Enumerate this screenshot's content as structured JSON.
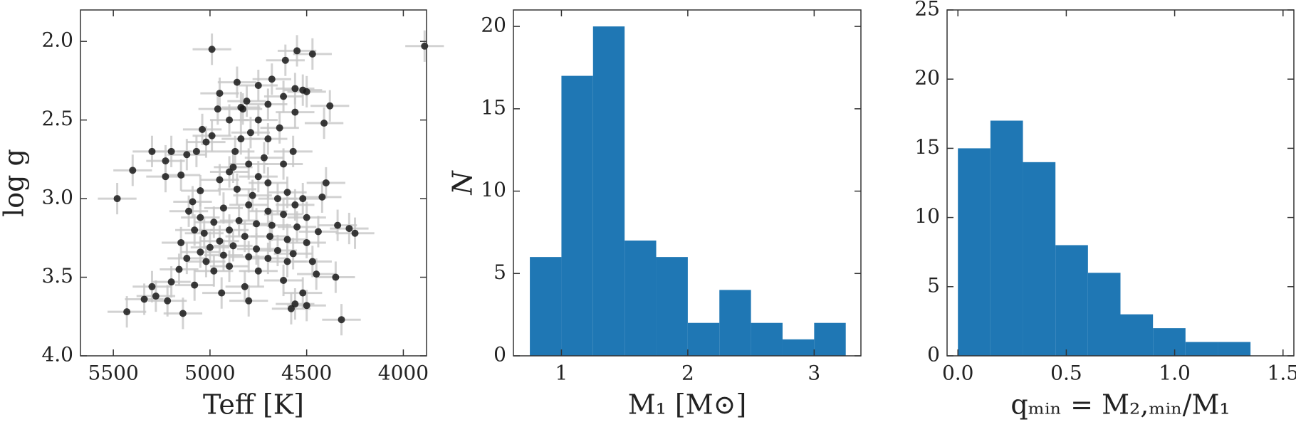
{
  "chart_data": [
    {
      "type": "scatter",
      "xlabel": "Teff [K]",
      "ylabel": "log g",
      "xlim": [
        5670,
        3880
      ],
      "ylim": [
        4.0,
        1.8
      ],
      "yinvert": true,
      "xticks": [
        5500,
        5000,
        4500,
        4000
      ],
      "yticks": [
        {
          "value": 2.0,
          "label": "2.0"
        },
        2.5,
        {
          "value": 3.0,
          "label": "3.0"
        },
        3.5,
        {
          "value": 4.0,
          "label": "4.0"
        }
      ],
      "color": "#1a1a1a",
      "error_color": "#c8c8c8",
      "xerr": 100,
      "yerr": 0.1,
      "x": [
        4990,
        4550,
        4470,
        4610,
        4680,
        4860,
        4750,
        4560,
        4520,
        4500,
        4950,
        4620,
        4810,
        4700,
        4840,
        4960,
        4560,
        4830,
        4380,
        4410,
        4750,
        4900,
        5040,
        4640,
        4790,
        4990,
        4840,
        5020,
        4700,
        4870,
        5200,
        5120,
        5070,
        5230,
        4570,
        4720,
        4800,
        4620,
        4880,
        4900,
        5400,
        5150,
        4750,
        5230,
        4950,
        4700,
        4400,
        5300,
        4860,
        5050,
        4600,
        4420,
        4780,
        4650,
        4520,
        5090,
        4800,
        4560,
        4930,
        4700,
        5110,
        4620,
        4500,
        5050,
        4850,
        4980,
        4760,
        4680,
        4550,
        4340,
        4280,
        4250,
        4900,
        4440,
        5080,
        5030,
        4820,
        4690,
        4600,
        4950,
        4500,
        5150,
        4880,
        5000,
        4760,
        4650,
        5050,
        4570,
        4930,
        4800,
        5120,
        4700,
        5020,
        4470,
        4600,
        4900,
        5160,
        4980,
        4750,
        4450,
        4350,
        4620,
        5080,
        5200,
        4820,
        5300,
        4940,
        5280,
        4520,
        5340,
        5220,
        4800,
        4560,
        4500,
        4580,
        5140,
        4320,
        3890,
        5480,
        5430
      ],
      "y": [
        2.05,
        2.06,
        2.08,
        2.12,
        2.24,
        2.26,
        2.28,
        2.3,
        2.31,
        2.32,
        2.33,
        2.35,
        2.38,
        2.4,
        2.42,
        2.43,
        2.45,
        2.43,
        2.41,
        2.52,
        2.5,
        2.5,
        2.56,
        2.55,
        2.58,
        2.6,
        2.62,
        2.64,
        2.62,
        2.7,
        2.7,
        2.72,
        2.7,
        2.76,
        2.7,
        2.74,
        2.78,
        2.78,
        2.8,
        2.83,
        2.82,
        2.85,
        2.86,
        2.86,
        2.88,
        2.9,
        2.9,
        2.7,
        2.94,
        2.95,
        2.96,
        2.99,
        2.98,
        3.0,
        3.0,
        3.02,
        3.04,
        3.04,
        3.06,
        3.08,
        3.08,
        3.1,
        3.12,
        3.12,
        3.14,
        3.15,
        3.16,
        3.17,
        3.18,
        3.17,
        3.19,
        3.22,
        3.2,
        3.21,
        3.2,
        3.22,
        3.24,
        3.24,
        3.26,
        3.27,
        3.28,
        3.28,
        3.3,
        3.31,
        3.32,
        3.33,
        3.34,
        3.35,
        3.36,
        3.37,
        3.38,
        3.38,
        3.4,
        3.4,
        3.4,
        3.43,
        3.45,
        3.46,
        3.46,
        3.48,
        3.5,
        3.52,
        3.55,
        3.53,
        3.56,
        3.56,
        3.6,
        3.62,
        3.6,
        3.64,
        3.65,
        3.65,
        3.67,
        3.68,
        3.7,
        3.73,
        3.77,
        2.03,
        3.0,
        3.72
      ]
    },
    {
      "type": "histogram",
      "xlabel": "M₁ [M⊙]",
      "ylabel": "N",
      "bins": [
        0.75,
        1.0,
        1.25,
        1.5,
        1.75,
        2.0,
        2.25,
        2.5,
        2.75,
        3.0,
        3.25
      ],
      "values": [
        6,
        17,
        20,
        7,
        6,
        2,
        4,
        2,
        1,
        2
      ],
      "color": "#1f77b4",
      "xlim": [
        0.62,
        3.37
      ],
      "ylim": [
        0,
        21
      ],
      "xticks": [
        1,
        2,
        3
      ],
      "yticks": [
        0,
        5,
        10,
        15,
        20
      ]
    },
    {
      "type": "histogram",
      "xlabel": "qₘᵢₙ = M₂,ₘᵢₙ/M₁",
      "bins": [
        0,
        0.15,
        0.3,
        0.45,
        0.6,
        0.75,
        0.9,
        1.05,
        1.2,
        1.35
      ],
      "values": [
        15,
        17,
        14,
        8,
        6,
        3,
        2,
        1,
        1
      ],
      "color": "#1f77b4",
      "xlim": [
        -0.05,
        1.55
      ],
      "ylim": [
        0,
        25
      ],
      "xticks": [
        {
          "value": 0,
          "label": "0.0"
        },
        0.5,
        {
          "value": 1,
          "label": "1.0"
        },
        1.5
      ],
      "yticks": [
        0,
        5,
        10,
        15,
        20,
        25
      ]
    }
  ]
}
